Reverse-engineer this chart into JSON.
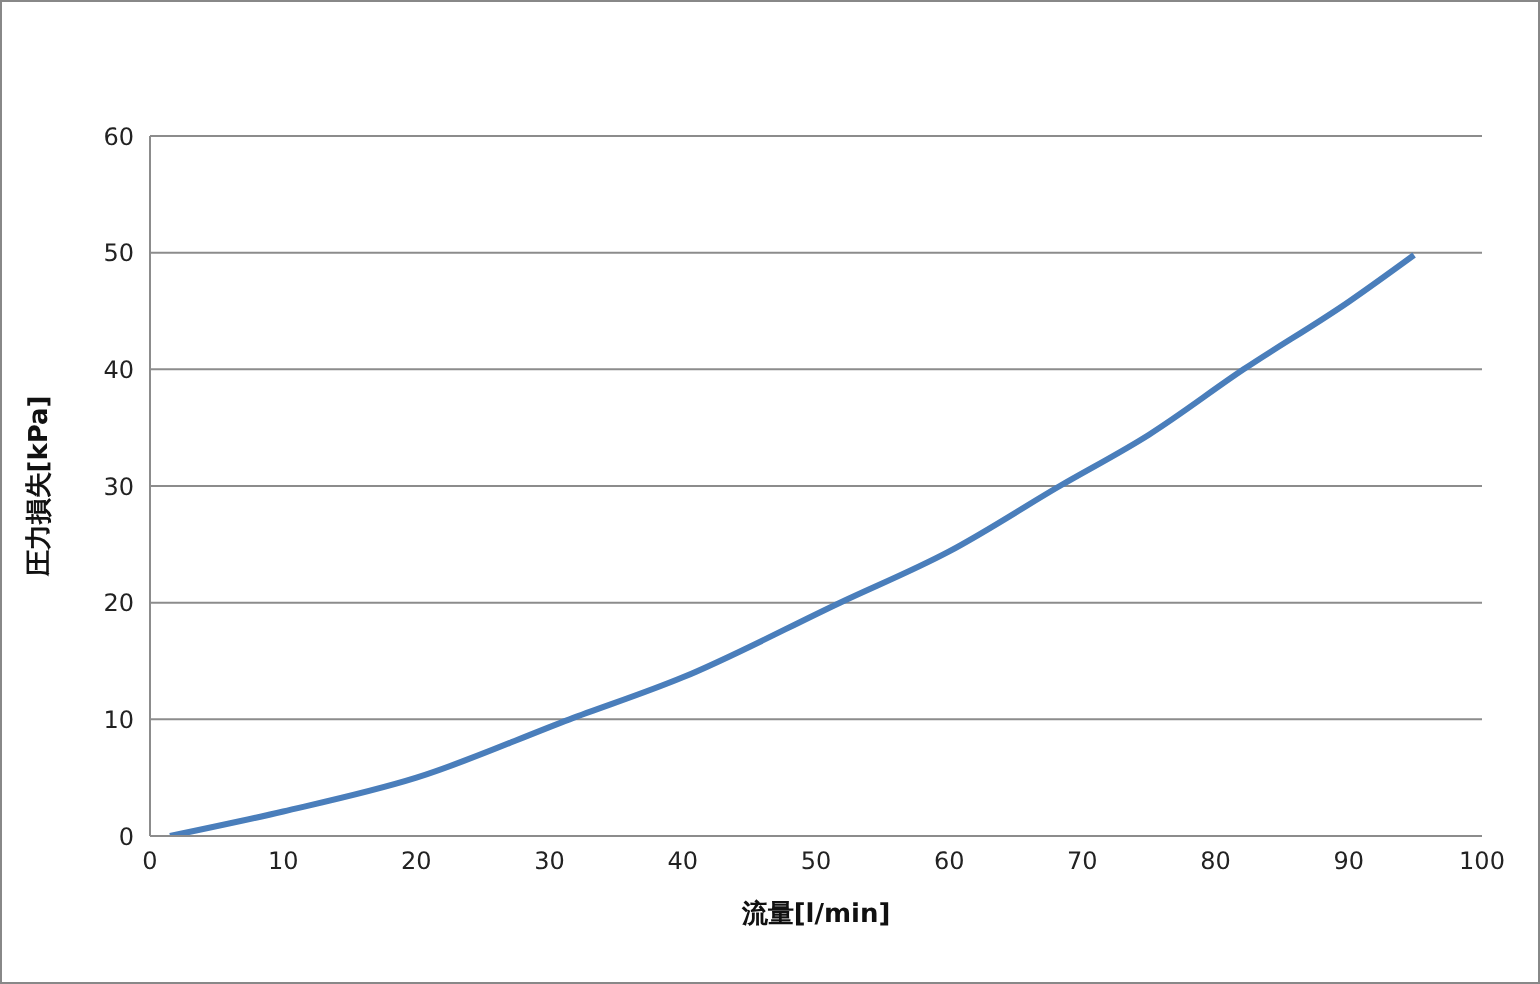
{
  "chart_data": {
    "type": "line",
    "xlabel": "流量[l/min]",
    "ylabel": "圧力損失[kPa]",
    "x": [
      1.5,
      10,
      20,
      31.5,
      40,
      51.8,
      60,
      68.3,
      75,
      82.1,
      90,
      94.9
    ],
    "series": [
      {
        "color": "#4a7ebb",
        "values": [
          0,
          2.1,
          5.0,
          10,
          13.6,
          20,
          24.4,
          30,
          34.4,
          40,
          45.8,
          49.8
        ]
      }
    ],
    "xlim": [
      0,
      100
    ],
    "xticks": [
      0,
      10,
      20,
      30,
      40,
      50,
      60,
      70,
      80,
      90,
      100
    ],
    "ylim": [
      0,
      60
    ],
    "yticks": [
      0,
      10,
      20,
      30,
      40,
      50,
      60
    ],
    "grid": "y",
    "marker": "none",
    "line_style": "solid"
  }
}
